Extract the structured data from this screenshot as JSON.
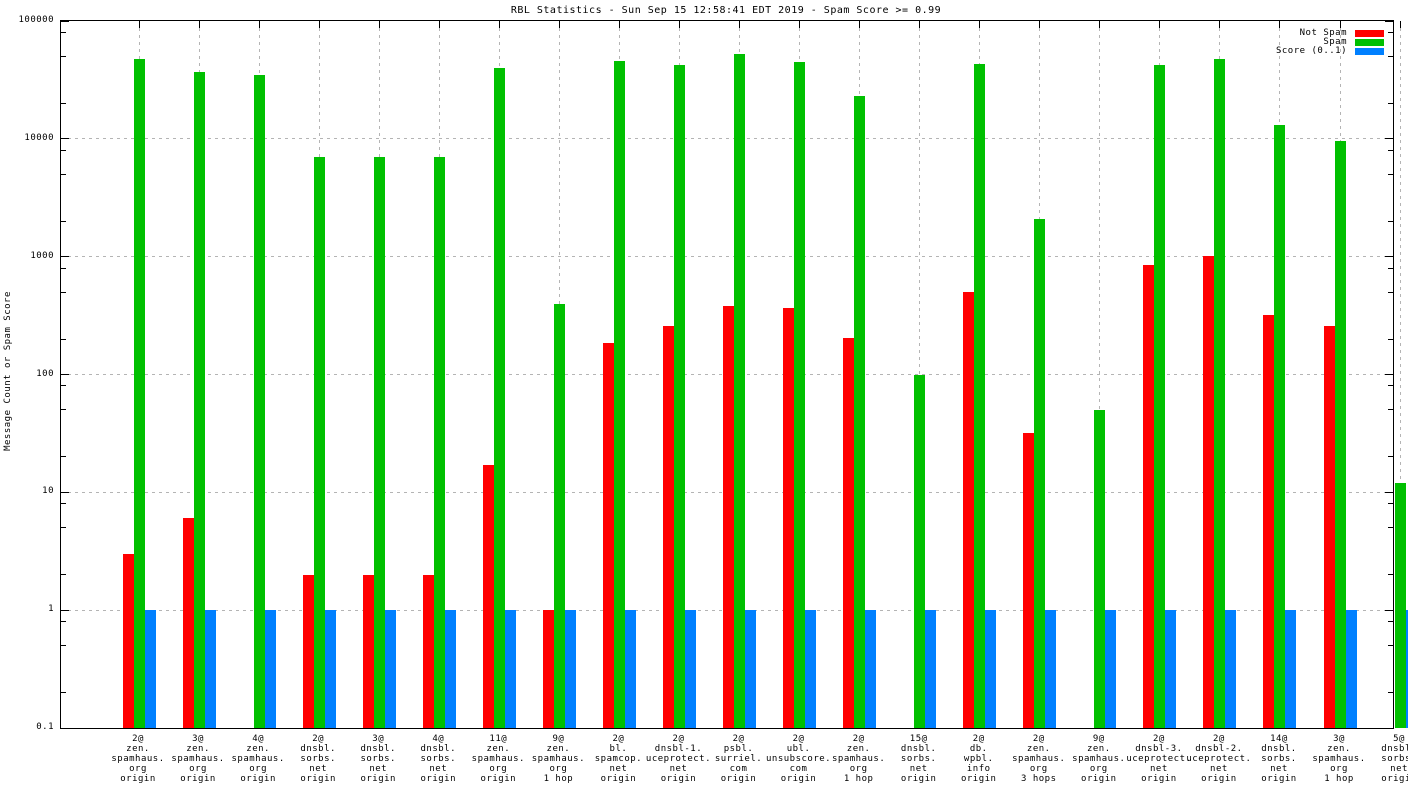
{
  "title": "RBL Statistics - Sun Sep 15 12:58:41 EDT 2019 - Spam Score >= 0.99",
  "chart_data": {
    "type": "bar",
    "title": "RBL Statistics - Sun Sep 15 12:58:41 EDT 2019 - Spam Score >= 0.99",
    "xlabel": "",
    "ylabel": "Message Count or Spam Score",
    "y_scale": "log",
    "ylim": [
      0.1,
      100000
    ],
    "y_tick_labels": [
      "100000",
      "10000",
      "1000",
      "100",
      "10",
      "1",
      "0.1"
    ],
    "y_minor_tick_multipliers": [
      2,
      5,
      8
    ],
    "grid": true,
    "legend_position": "top-right-inside",
    "colors": {
      "not_spam": "#ff0000",
      "spam": "#00c000",
      "score": "#0080ff",
      "grid": "#b4b4b4",
      "border": "#000000",
      "background": "#ffffff",
      "text": "#000000"
    },
    "categories": [
      [
        "2@",
        "zen.",
        "spamhaus.",
        "org",
        "origin"
      ],
      [
        "3@",
        "zen.",
        "spamhaus.",
        "org",
        "origin"
      ],
      [
        "4@",
        "zen.",
        "spamhaus.",
        "org",
        "origin"
      ],
      [
        "2@",
        "dnsbl.",
        "sorbs.",
        "net",
        "origin"
      ],
      [
        "3@",
        "dnsbl.",
        "sorbs.",
        "net",
        "origin"
      ],
      [
        "4@",
        "dnsbl.",
        "sorbs.",
        "net",
        "origin"
      ],
      [
        "11@",
        "zen.",
        "spamhaus.",
        "org",
        "origin"
      ],
      [
        "9@",
        "zen.",
        "spamhaus.",
        "org",
        "1 hop"
      ],
      [
        "2@",
        "bl.",
        "spamcop.",
        "net",
        "origin"
      ],
      [
        "2@",
        "dnsbl-1.",
        "uceprotect.",
        "net",
        "origin"
      ],
      [
        "2@",
        "psbl.",
        "surriel.",
        "com",
        "origin"
      ],
      [
        "2@",
        "ubl.",
        "unsubscore.",
        "com",
        "origin"
      ],
      [
        "2@",
        "zen.",
        "spamhaus.",
        "org",
        "1 hop"
      ],
      [
        "15@",
        "dnsbl.",
        "sorbs.",
        "net",
        "origin"
      ],
      [
        "2@",
        "db.",
        "wpbl.",
        "info",
        "origin"
      ],
      [
        "2@",
        "zen.",
        "spamhaus.",
        "org",
        "3 hops"
      ],
      [
        "9@",
        "zen.",
        "spamhaus.",
        "org",
        "origin"
      ],
      [
        "2@",
        "dnsbl-3.",
        "uceprotect.",
        "net",
        "origin"
      ],
      [
        "2@",
        "dnsbl-2.",
        "uceprotect.",
        "net",
        "origin"
      ],
      [
        "14@",
        "dnsbl.",
        "sorbs.",
        "net",
        "origin"
      ],
      [
        "3@",
        "zen.",
        "spamhaus.",
        "org",
        "1 hop"
      ],
      [
        "5@",
        "dnsbl.",
        "sorbs.",
        "net",
        "origin"
      ]
    ],
    "series": [
      {
        "name": "Not Spam",
        "color_key": "not_spam",
        "values": [
          3,
          6,
          null,
          2,
          2,
          2,
          17,
          1,
          185,
          260,
          380,
          365,
          205,
          null,
          500,
          32,
          null,
          850,
          1020,
          320,
          260,
          null
        ]
      },
      {
        "name": "Spam",
        "color_key": "spam",
        "values": [
          48000,
          37000,
          35000,
          7000,
          7000,
          7000,
          40000,
          400,
          46000,
          42000,
          52000,
          45000,
          23000,
          100,
          43000,
          2100,
          50,
          42000,
          48000,
          13000,
          9500,
          12
        ]
      },
      {
        "name": "Score (0..1)",
        "color_key": "score",
        "values": [
          1,
          1,
          1,
          1,
          1,
          1,
          1,
          1,
          1,
          1,
          1,
          1,
          1,
          1,
          1,
          1,
          1,
          1,
          1,
          1,
          1,
          1
        ]
      }
    ]
  }
}
